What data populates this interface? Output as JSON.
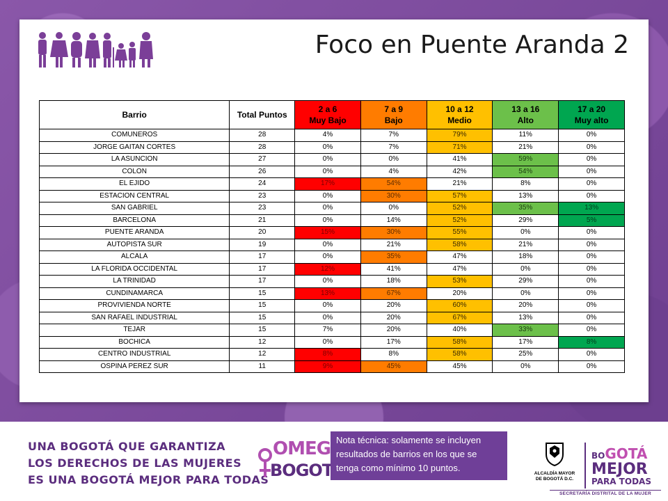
{
  "title": "Foco en Puente Aranda 2",
  "icons": {
    "figures": "women-figures-icon"
  },
  "colors": {
    "muy_bajo": "#ff0000",
    "bajo": "#ff7c00",
    "medio": "#ffc000",
    "alto": "#6cc04a",
    "muy_alto": "#00a650",
    "brand_purple": "#5b2d7e"
  },
  "table": {
    "headers": {
      "barrio": "Barrio",
      "total": "Total Puntos",
      "c1_range": "2 a 6",
      "c1_label": "Muy Bajo",
      "c2_range": "7 a 9",
      "c2_label": "Bajo",
      "c3_range": "10 a 12",
      "c3_label": "Medio",
      "c4_range": "13 a 16",
      "c4_label": "Alto",
      "c5_range": "17 a 20",
      "c5_label": "Muy alto"
    },
    "rows": [
      {
        "barrio": "COMUNEROS",
        "total": "28",
        "v": [
          "4%",
          "7%",
          "79%",
          "11%",
          "0%"
        ],
        "hl": [
          "",
          "",
          "yellow",
          "",
          ""
        ]
      },
      {
        "barrio": "JORGE GAITAN CORTES",
        "total": "28",
        "v": [
          "0%",
          "7%",
          "71%",
          "21%",
          "0%"
        ],
        "hl": [
          "",
          "",
          "yellow",
          "",
          ""
        ]
      },
      {
        "barrio": "LA ASUNCION",
        "total": "27",
        "v": [
          "0%",
          "0%",
          "41%",
          "59%",
          "0%"
        ],
        "hl": [
          "",
          "",
          "",
          "lgreen",
          ""
        ]
      },
      {
        "barrio": "COLON",
        "total": "26",
        "v": [
          "0%",
          "4%",
          "42%",
          "54%",
          "0%"
        ],
        "hl": [
          "",
          "",
          "",
          "lgreen",
          ""
        ]
      },
      {
        "barrio": "EL EJIDO",
        "total": "24",
        "v": [
          "17%",
          "54%",
          "21%",
          "8%",
          "0%"
        ],
        "hl": [
          "red",
          "orange",
          "",
          "",
          ""
        ]
      },
      {
        "barrio": "ESTACION CENTRAL",
        "total": "23",
        "v": [
          "0%",
          "30%",
          "57%",
          "13%",
          "0%"
        ],
        "hl": [
          "",
          "orange",
          "yellow",
          "",
          ""
        ]
      },
      {
        "barrio": "SAN GABRIEL",
        "total": "23",
        "v": [
          "0%",
          "0%",
          "52%",
          "35%",
          "13%"
        ],
        "hl": [
          "",
          "",
          "yellow",
          "lgreen",
          "dgreen"
        ]
      },
      {
        "barrio": "BARCELONA",
        "total": "21",
        "v": [
          "0%",
          "14%",
          "52%",
          "29%",
          "5%"
        ],
        "hl": [
          "",
          "",
          "yellow",
          "",
          "dgreen"
        ]
      },
      {
        "barrio": "PUENTE ARANDA",
        "total": "20",
        "v": [
          "15%",
          "30%",
          "55%",
          "0%",
          "0%"
        ],
        "hl": [
          "red",
          "orange",
          "yellow",
          "",
          ""
        ]
      },
      {
        "barrio": "AUTOPISTA SUR",
        "total": "19",
        "v": [
          "0%",
          "21%",
          "58%",
          "21%",
          "0%"
        ],
        "hl": [
          "",
          "",
          "yellow",
          "",
          ""
        ]
      },
      {
        "barrio": "ALCALA",
        "total": "17",
        "v": [
          "0%",
          "35%",
          "47%",
          "18%",
          "0%"
        ],
        "hl": [
          "",
          "orange",
          "",
          "",
          ""
        ]
      },
      {
        "barrio": "LA FLORIDA OCCIDENTAL",
        "total": "17",
        "v": [
          "12%",
          "41%",
          "47%",
          "0%",
          "0%"
        ],
        "hl": [
          "red",
          "",
          "",
          "",
          ""
        ]
      },
      {
        "barrio": "LA TRINIDAD",
        "total": "17",
        "v": [
          "0%",
          "18%",
          "53%",
          "29%",
          "0%"
        ],
        "hl": [
          "",
          "",
          "yellow",
          "",
          ""
        ]
      },
      {
        "barrio": "CUNDINAMARCA",
        "total": "15",
        "v": [
          "13%",
          "67%",
          "20%",
          "0%",
          "0%"
        ],
        "hl": [
          "red",
          "orange",
          "",
          "",
          ""
        ]
      },
      {
        "barrio": "PROVIVIENDA NORTE",
        "total": "15",
        "v": [
          "0%",
          "20%",
          "60%",
          "20%",
          "0%"
        ],
        "hl": [
          "",
          "",
          "yellow",
          "",
          ""
        ]
      },
      {
        "barrio": "SAN RAFAEL INDUSTRIAL",
        "total": "15",
        "v": [
          "0%",
          "20%",
          "67%",
          "13%",
          "0%"
        ],
        "hl": [
          "",
          "",
          "yellow",
          "",
          ""
        ]
      },
      {
        "barrio": "TEJAR",
        "total": "15",
        "v": [
          "7%",
          "20%",
          "40%",
          "33%",
          "0%"
        ],
        "hl": [
          "",
          "",
          "",
          "lgreen",
          ""
        ]
      },
      {
        "barrio": "BOCHICA",
        "total": "12",
        "v": [
          "0%",
          "17%",
          "58%",
          "17%",
          "8%"
        ],
        "hl": [
          "",
          "",
          "yellow",
          "",
          "dgreen"
        ]
      },
      {
        "barrio": "CENTRO INDUSTRIAL",
        "total": "12",
        "v": [
          "8%",
          "8%",
          "58%",
          "25%",
          "0%"
        ],
        "hl": [
          "red",
          "",
          "yellow",
          "",
          ""
        ]
      },
      {
        "barrio": "OSPINA PEREZ SUR",
        "total": "11",
        "v": [
          "9%",
          "45%",
          "45%",
          "0%",
          "0%"
        ],
        "hl": [
          "red",
          "orange",
          "",
          "",
          ""
        ]
      }
    ]
  },
  "footer": {
    "slogan_1": "UNA BOGOTÁ QUE GARANTIZA",
    "slogan_2": "LOS DERECHOS DE LAS MUJERES",
    "slogan_3": "ES UNA BOGOTÁ MEJOR PARA TODAS",
    "omeg_1": "OMEG",
    "omeg_2": "BOGOTÁ",
    "note": "Nota técnica: solamente se incluyen resultados de barrios en los que se tenga como mínimo 10 puntos.",
    "alcaldia_1": "ALCALDÍA MAYOR",
    "alcaldia_2": "DE BOGOTÁ D.C.",
    "bogota_small": "BO",
    "bogota_big": "GOTÁ",
    "bogota_mejor": "MEJOR",
    "bogota_para": "PARA TODAS",
    "secretaria": "SECRETARÍA DISTRITAL DE LA MUJER"
  }
}
